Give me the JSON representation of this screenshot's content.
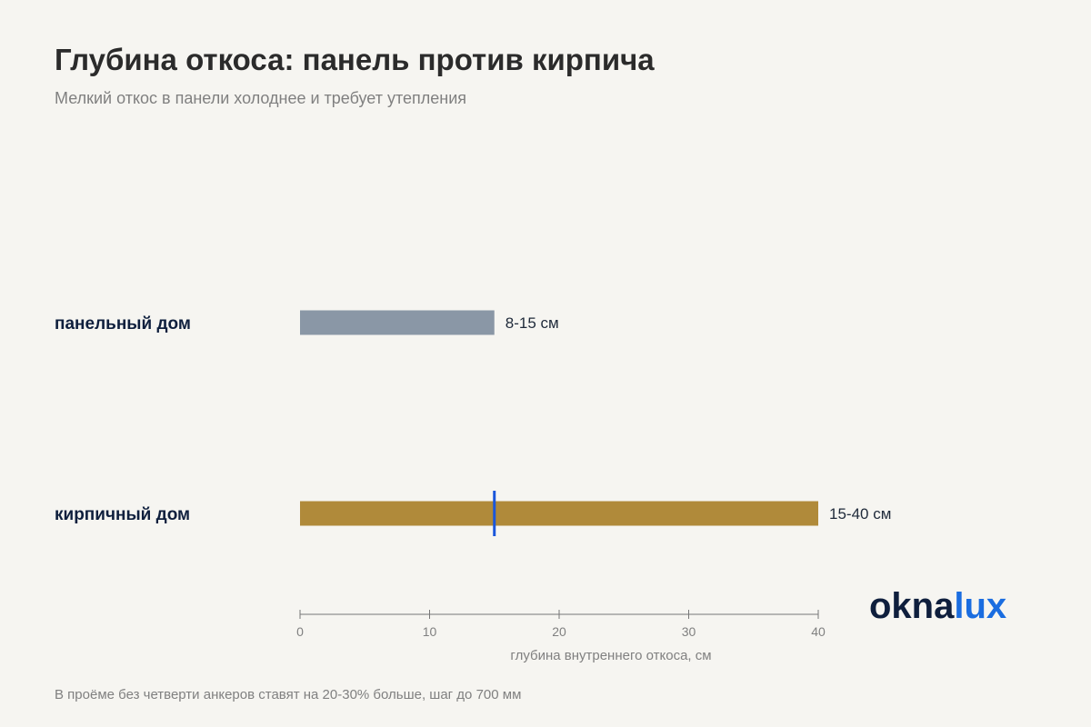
{
  "chart_data": {
    "type": "bar",
    "orientation": "horizontal",
    "title": "Глубина откоса: панель против кирпича",
    "subtitle": "Мелкий откос в панели холоднее и требует утепления",
    "categories": [
      "панельный дом",
      "кирпичный дом"
    ],
    "values": [
      15,
      40
    ],
    "value_labels": [
      "8-15 см",
      "15-40 см"
    ],
    "colors": [
      "#8a97a6",
      "#b08a3a"
    ],
    "reference_line": {
      "value": 15,
      "color": "#1a56db",
      "category": 1
    },
    "xlim": [
      0,
      40
    ],
    "xticks": [
      0,
      10,
      20,
      30,
      40
    ],
    "xlabel": "глубина внутреннего откоса, см",
    "footnote": "В проёме без четверти анкеров ставят на 20-30% больше, шаг до 700 мм"
  },
  "brand": {
    "part1": "okna",
    "part2": "lux"
  }
}
